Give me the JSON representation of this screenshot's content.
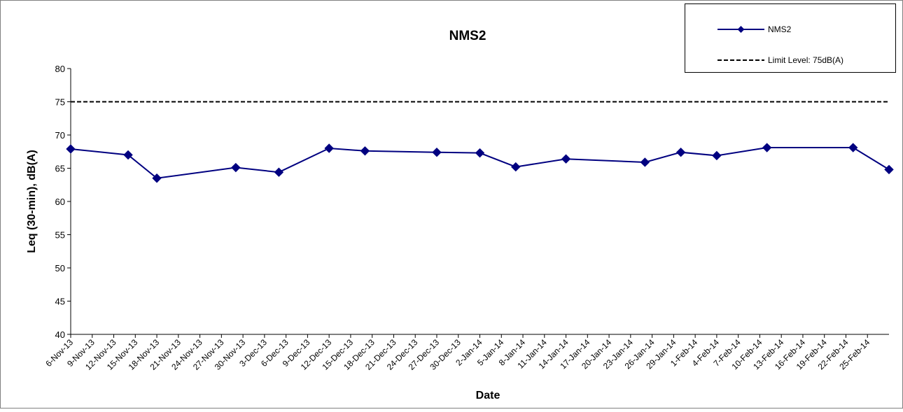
{
  "chart_data": {
    "type": "line",
    "title": "NMS2",
    "x_label": "Date",
    "y_label": "Leq (30-min), dB(A)",
    "x": [
      "2013-11-06",
      "2013-11-14",
      "2013-11-18",
      "2013-11-29",
      "2013-12-05",
      "2013-12-12",
      "2013-12-17",
      "2013-12-27",
      "2014-01-02",
      "2014-01-07",
      "2014-01-14",
      "2014-01-25",
      "2014-01-30",
      "2014-02-04",
      "2014-02-11",
      "2014-02-23",
      "2014-02-28"
    ],
    "series": [
      {
        "name": "NMS2",
        "color": "#000080",
        "values": [
          67.9,
          67.0,
          63.5,
          65.1,
          64.4,
          68.0,
          67.6,
          67.4,
          67.3,
          65.2,
          66.4,
          65.9,
          67.4,
          66.9,
          68.1,
          68.1,
          64.8
        ]
      }
    ],
    "limit": {
      "name": "Limit Level: 75dB(A)",
      "value": 75,
      "color": "#000000"
    },
    "xlim": [
      "2013-11-06",
      "2014-02-28"
    ],
    "xticks": [
      {
        "value": "2013-11-06",
        "label": "6-Nov-13"
      },
      {
        "value": "2013-11-09",
        "label": "9-Nov-13"
      },
      {
        "value": "2013-11-12",
        "label": "12-Nov-13"
      },
      {
        "value": "2013-11-15",
        "label": "15-Nov-13"
      },
      {
        "value": "2013-11-18",
        "label": "18-Nov-13"
      },
      {
        "value": "2013-11-21",
        "label": "21-Nov-13"
      },
      {
        "value": "2013-11-24",
        "label": "24-Nov-13"
      },
      {
        "value": "2013-11-27",
        "label": "27-Nov-13"
      },
      {
        "value": "2013-11-30",
        "label": "30-Nov-13"
      },
      {
        "value": "2013-12-03",
        "label": "3-Dec-13"
      },
      {
        "value": "2013-12-06",
        "label": "6-Dec-13"
      },
      {
        "value": "2013-12-09",
        "label": "9-Dec-13"
      },
      {
        "value": "2013-12-12",
        "label": "12-Dec-13"
      },
      {
        "value": "2013-12-15",
        "label": "15-Dec-13"
      },
      {
        "value": "2013-12-18",
        "label": "18-Dec-13"
      },
      {
        "value": "2013-12-21",
        "label": "21-Dec-13"
      },
      {
        "value": "2013-12-24",
        "label": "24-Dec-13"
      },
      {
        "value": "2013-12-27",
        "label": "27-Dec-13"
      },
      {
        "value": "2013-12-30",
        "label": "30-Dec-13"
      },
      {
        "value": "2014-01-02",
        "label": "2-Jan-14"
      },
      {
        "value": "2014-01-05",
        "label": "5-Jan-14"
      },
      {
        "value": "2014-01-08",
        "label": "8-Jan-14"
      },
      {
        "value": "2014-01-11",
        "label": "11-Jan-14"
      },
      {
        "value": "2014-01-14",
        "label": "14-Jan-14"
      },
      {
        "value": "2014-01-17",
        "label": "17-Jan-14"
      },
      {
        "value": "2014-01-20",
        "label": "20-Jan-14"
      },
      {
        "value": "2014-01-23",
        "label": "23-Jan-14"
      },
      {
        "value": "2014-01-26",
        "label": "26-Jan-14"
      },
      {
        "value": "2014-01-29",
        "label": "29-Jan-14"
      },
      {
        "value": "2014-02-01",
        "label": "1-Feb-14"
      },
      {
        "value": "2014-02-04",
        "label": "4-Feb-14"
      },
      {
        "value": "2014-02-07",
        "label": "7-Feb-14"
      },
      {
        "value": "2014-02-10",
        "label": "10-Feb-14"
      },
      {
        "value": "2014-02-13",
        "label": "13-Feb-14"
      },
      {
        "value": "2014-02-16",
        "label": "16-Feb-14"
      },
      {
        "value": "2014-02-19",
        "label": "19-Feb-14"
      },
      {
        "value": "2014-02-22",
        "label": "22-Feb-14"
      },
      {
        "value": "2014-02-25",
        "label": "25-Feb-14"
      }
    ],
    "ylim": [
      40,
      80
    ],
    "yticks": [
      40,
      45,
      50,
      55,
      60,
      65,
      70,
      75,
      80
    ],
    "grid": false,
    "legend": "top-right"
  }
}
